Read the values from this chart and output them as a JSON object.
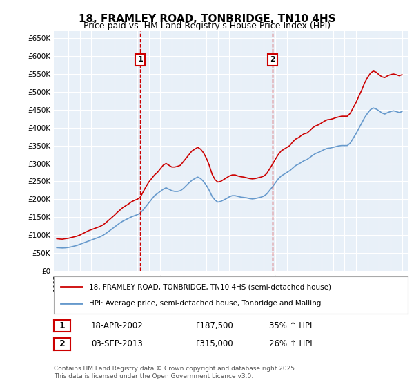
{
  "title": "18, FRAMLEY ROAD, TONBRIDGE, TN10 4HS",
  "subtitle": "Price paid vs. HM Land Registry's House Price Index (HPI)",
  "ylabel_ticks": [
    "£0",
    "£50K",
    "£100K",
    "£150K",
    "£200K",
    "£250K",
    "£300K",
    "£350K",
    "£400K",
    "£450K",
    "£500K",
    "£550K",
    "£600K",
    "£650K"
  ],
  "ytick_values": [
    0,
    50000,
    100000,
    150000,
    200000,
    250000,
    300000,
    350000,
    400000,
    450000,
    500000,
    550000,
    600000,
    650000
  ],
  "ylim": [
    0,
    670000
  ],
  "background_color": "#ddeeff",
  "plot_bg": "#e8f0f8",
  "red_color": "#cc0000",
  "blue_color": "#6699cc",
  "marker1_date": "2002-04",
  "marker1_label": "1",
  "marker1_price": 187500,
  "marker2_date": "2013-09",
  "marker2_label": "2",
  "marker2_price": 315000,
  "legend_line1": "18, FRAMLEY ROAD, TONBRIDGE, TN10 4HS (semi-detached house)",
  "legend_line2": "HPI: Average price, semi-detached house, Tonbridge and Malling",
  "annotation1": "1    18-APR-2002         £187,500        35% ↑ HPI",
  "annotation2": "2    03-SEP-2013         £315,000        26% ↑ HPI",
  "footnote": "Contains HM Land Registry data © Crown copyright and database right 2025.\nThis data is licensed under the Open Government Licence v3.0.",
  "hpi_red": {
    "dates": [
      1995.0,
      1995.25,
      1995.5,
      1995.75,
      1996.0,
      1996.25,
      1996.5,
      1996.75,
      1997.0,
      1997.25,
      1997.5,
      1997.75,
      1998.0,
      1998.25,
      1998.5,
      1998.75,
      1999.0,
      1999.25,
      1999.5,
      1999.75,
      2000.0,
      2000.25,
      2000.5,
      2000.75,
      2001.0,
      2001.25,
      2001.5,
      2001.75,
      2002.0,
      2002.25,
      2002.5,
      2002.75,
      2003.0,
      2003.25,
      2003.5,
      2003.75,
      2004.0,
      2004.25,
      2004.5,
      2004.75,
      2005.0,
      2005.25,
      2005.5,
      2005.75,
      2006.0,
      2006.25,
      2006.5,
      2006.75,
      2007.0,
      2007.25,
      2007.5,
      2007.75,
      2008.0,
      2008.25,
      2008.5,
      2008.75,
      2009.0,
      2009.25,
      2009.5,
      2009.75,
      2010.0,
      2010.25,
      2010.5,
      2010.75,
      2011.0,
      2011.25,
      2011.5,
      2011.75,
      2012.0,
      2012.25,
      2012.5,
      2012.75,
      2013.0,
      2013.25,
      2013.5,
      2013.75,
      2014.0,
      2014.25,
      2014.5,
      2014.75,
      2015.0,
      2015.25,
      2015.5,
      2015.75,
      2016.0,
      2016.25,
      2016.5,
      2016.75,
      2017.0,
      2017.25,
      2017.5,
      2017.75,
      2018.0,
      2018.25,
      2018.5,
      2018.75,
      2019.0,
      2019.25,
      2019.5,
      2019.75,
      2020.0,
      2020.25,
      2020.5,
      2020.75,
      2021.0,
      2021.25,
      2021.5,
      2021.75,
      2022.0,
      2022.25,
      2022.5,
      2022.75,
      2023.0,
      2023.25,
      2023.5,
      2023.75,
      2024.0,
      2024.25,
      2024.5,
      2024.75,
      2025.0
    ],
    "values": [
      90000,
      89000,
      88500,
      90000,
      91000,
      93000,
      95000,
      97000,
      100000,
      104000,
      108000,
      112000,
      115000,
      118000,
      121000,
      124000,
      128000,
      134000,
      141000,
      148000,
      155000,
      163000,
      170000,
      177000,
      182000,
      187000,
      193000,
      197000,
      200000,
      205000,
      220000,
      235000,
      248000,
      258000,
      268000,
      275000,
      285000,
      295000,
      300000,
      295000,
      290000,
      290000,
      292000,
      295000,
      305000,
      315000,
      325000,
      335000,
      340000,
      345000,
      340000,
      330000,
      315000,
      295000,
      270000,
      255000,
      248000,
      250000,
      255000,
      260000,
      265000,
      268000,
      268000,
      265000,
      263000,
      262000,
      260000,
      258000,
      257000,
      258000,
      260000,
      262000,
      265000,
      272000,
      285000,
      298000,
      312000,
      325000,
      335000,
      340000,
      345000,
      350000,
      360000,
      368000,
      372000,
      378000,
      383000,
      385000,
      392000,
      400000,
      405000,
      408000,
      413000,
      418000,
      422000,
      423000,
      425000,
      428000,
      430000,
      432000,
      432000,
      432000,
      440000,
      455000,
      470000,
      488000,
      505000,
      525000,
      540000,
      552000,
      558000,
      555000,
      548000,
      542000,
      540000,
      545000,
      548000,
      550000,
      548000,
      545000,
      548000
    ]
  },
  "hpi_blue": {
    "dates": [
      1995.0,
      1995.25,
      1995.5,
      1995.75,
      1996.0,
      1996.25,
      1996.5,
      1996.75,
      1997.0,
      1997.25,
      1997.5,
      1997.75,
      1998.0,
      1998.25,
      1998.5,
      1998.75,
      1999.0,
      1999.25,
      1999.5,
      1999.75,
      2000.0,
      2000.25,
      2000.5,
      2000.75,
      2001.0,
      2001.25,
      2001.5,
      2001.75,
      2002.0,
      2002.25,
      2002.5,
      2002.75,
      2003.0,
      2003.25,
      2003.5,
      2003.75,
      2004.0,
      2004.25,
      2004.5,
      2004.75,
      2005.0,
      2005.25,
      2005.5,
      2005.75,
      2006.0,
      2006.25,
      2006.5,
      2006.75,
      2007.0,
      2007.25,
      2007.5,
      2007.75,
      2008.0,
      2008.25,
      2008.5,
      2008.75,
      2009.0,
      2009.25,
      2009.5,
      2009.75,
      2010.0,
      2010.25,
      2010.5,
      2010.75,
      2011.0,
      2011.25,
      2011.5,
      2011.75,
      2012.0,
      2012.25,
      2012.5,
      2012.75,
      2013.0,
      2013.25,
      2013.5,
      2013.75,
      2014.0,
      2014.25,
      2014.5,
      2014.75,
      2015.0,
      2015.25,
      2015.5,
      2015.75,
      2016.0,
      2016.25,
      2016.5,
      2016.75,
      2017.0,
      2017.25,
      2017.5,
      2017.75,
      2018.0,
      2018.25,
      2018.5,
      2018.75,
      2019.0,
      2019.25,
      2019.5,
      2019.75,
      2020.0,
      2020.25,
      2020.5,
      2020.75,
      2021.0,
      2021.25,
      2021.5,
      2021.75,
      2022.0,
      2022.25,
      2022.5,
      2022.75,
      2023.0,
      2023.25,
      2023.5,
      2023.75,
      2024.0,
      2024.25,
      2024.5,
      2024.75,
      2025.0
    ],
    "values": [
      65000,
      64500,
      64000,
      64500,
      65500,
      67000,
      69000,
      71000,
      74000,
      77000,
      80000,
      83000,
      86000,
      89000,
      92000,
      95000,
      99000,
      104000,
      110000,
      116000,
      122000,
      128000,
      134000,
      139000,
      143000,
      147000,
      151000,
      154000,
      157000,
      161000,
      170000,
      180000,
      190000,
      200000,
      210000,
      216000,
      222000,
      228000,
      232000,
      228000,
      224000,
      222000,
      222000,
      224000,
      230000,
      238000,
      246000,
      253000,
      258000,
      262000,
      258000,
      250000,
      239000,
      225000,
      208000,
      198000,
      192000,
      194000,
      198000,
      202000,
      207000,
      210000,
      210000,
      208000,
      206000,
      205000,
      204000,
      202000,
      201000,
      202000,
      204000,
      206000,
      209000,
      215000,
      225000,
      235000,
      246000,
      257000,
      265000,
      270000,
      275000,
      280000,
      287000,
      294000,
      298000,
      303000,
      308000,
      311000,
      317000,
      323000,
      328000,
      331000,
      335000,
      339000,
      342000,
      343000,
      345000,
      347000,
      349000,
      350000,
      350000,
      350000,
      357000,
      370000,
      383000,
      398000,
      413000,
      428000,
      440000,
      450000,
      455000,
      452000,
      447000,
      441000,
      438000,
      442000,
      445000,
      447000,
      445000,
      442000,
      445000
    ]
  }
}
